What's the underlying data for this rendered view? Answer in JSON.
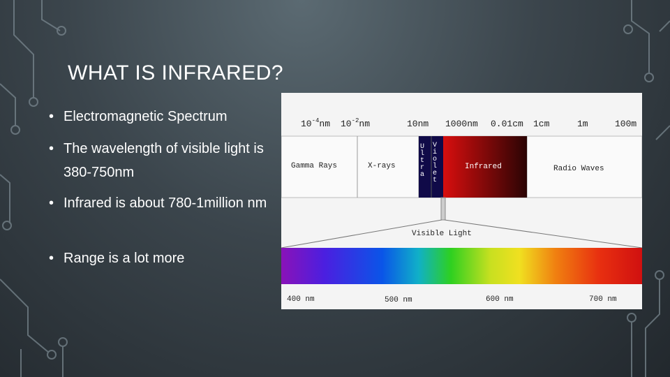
{
  "slide": {
    "title": "WHAT IS INFRARED?",
    "bullets": [
      "Electromagnetic Spectrum",
      "The wavelength of visible light is 380-750nm",
      "Infrared is about 780-1million nm",
      "Range is a lot more"
    ]
  },
  "diagram": {
    "scale": [
      {
        "base": "10",
        "exp": "-4",
        "unit": "nm"
      },
      {
        "base": "10",
        "exp": "-2",
        "unit": "nm"
      },
      "10nm",
      "1000nm",
      "0.01cm",
      "1cm",
      "1m",
      "100m"
    ],
    "bands": [
      "Gamma Rays",
      "X-rays",
      "Ultra",
      "Violet",
      "Infrared",
      "Radio Waves"
    ],
    "visible_label": "Visible Light",
    "visible_scale": [
      "400 nm",
      "500 nm",
      "600 nm",
      "700 nm"
    ]
  }
}
